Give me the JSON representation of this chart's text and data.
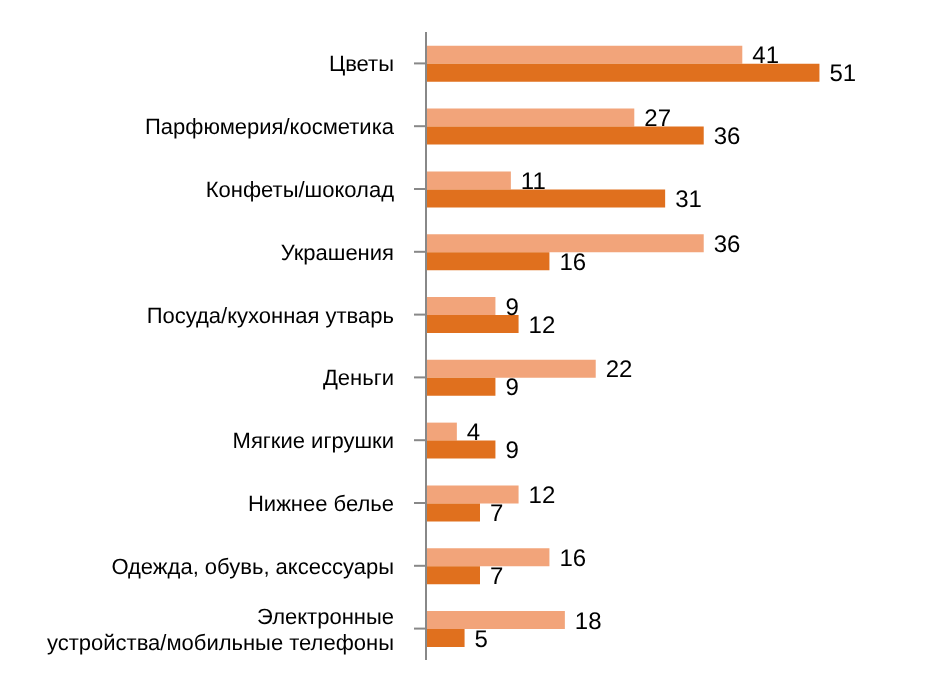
{
  "chart_data": {
    "type": "bar",
    "orientation": "horizontal",
    "data_labels": true,
    "categories": [
      "Цветы",
      "Парфюмерия/косметика",
      "Конфеты/шоколад",
      "Украшения",
      "Посуда/кухонная утварь",
      "Деньги",
      "Мягкие игрушки",
      "Нижнее белье",
      "Одежда, обувь, аксессуары",
      "Электронные устройства/мобильные телефоны"
    ],
    "series": [
      {
        "color": "#f2a47a",
        "values": [
          41,
          27,
          11,
          36,
          9,
          22,
          4,
          12,
          16,
          18
        ]
      },
      {
        "color": "#e0701e",
        "values": [
          51,
          36,
          31,
          16,
          12,
          9,
          9,
          7,
          7,
          5
        ]
      }
    ]
  }
}
